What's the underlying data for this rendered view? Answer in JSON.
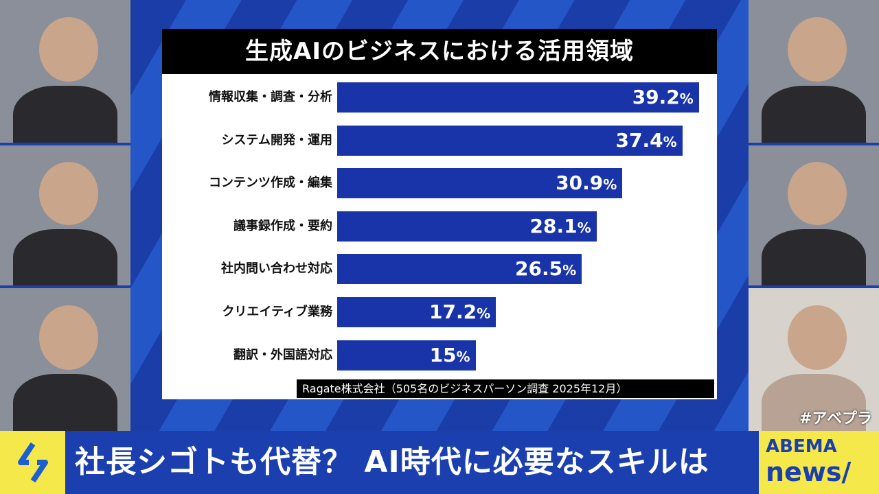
{
  "chart_data": {
    "type": "bar",
    "orientation": "horizontal",
    "title": "生成AIのビジネスにおける活用領域",
    "categories": [
      "情報収集・調査・分析",
      "システム開発・運用",
      "コンテンツ作成・編集",
      "議事録作成・要約",
      "社内問い合わせ対応",
      "クリエイティブ業務",
      "翻訳・外国語対応"
    ],
    "values": [
      39.2,
      37.4,
      30.9,
      28.1,
      26.5,
      17.2,
      15
    ],
    "value_labels": [
      "39.2",
      "37.4",
      "30.9",
      "28.1",
      "26.5",
      "17.2",
      "15"
    ],
    "unit": "%",
    "source": "Ragate株式会社（505名のビジネスパーソン調査 2025年12月）",
    "bar_color": "#1834a8"
  },
  "caption": "社長シゴトも代替？ AI時代に必要なスキルは",
  "hashtag": "#アベプラ",
  "logo": {
    "top": "ABEMA",
    "bottom": "news/"
  }
}
